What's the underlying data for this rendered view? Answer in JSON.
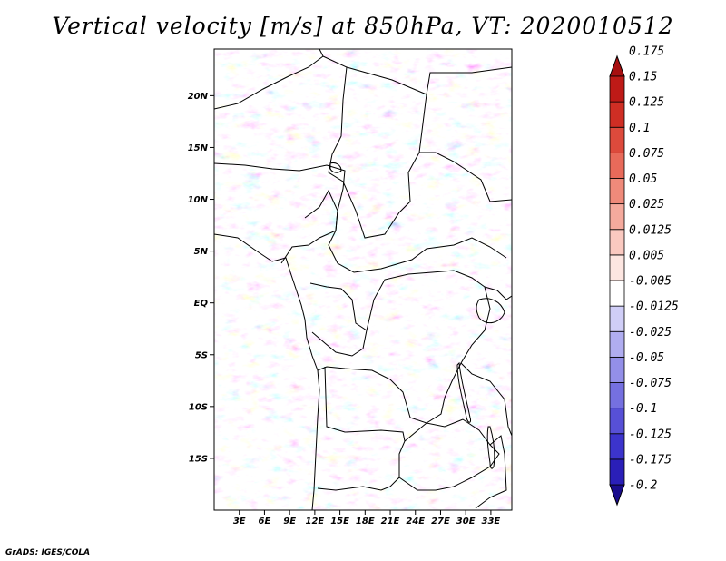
{
  "title": "Vertical velocity [m/s] at 850hPa, VT: 2020010512",
  "credit": "GrADS: IGES/COLA",
  "map": {
    "lon_range": [
      0,
      35.5
    ],
    "lat_range": [
      -20,
      24.5
    ],
    "lat_ticks": [
      {
        "value": 20,
        "label": "20N"
      },
      {
        "value": 15,
        "label": "15N"
      },
      {
        "value": 10,
        "label": "10N"
      },
      {
        "value": 5,
        "label": "5N"
      },
      {
        "value": 0,
        "label": "EQ"
      },
      {
        "value": -5,
        "label": "5S"
      },
      {
        "value": -10,
        "label": "10S"
      },
      {
        "value": -15,
        "label": "15S"
      }
    ],
    "lon_ticks": [
      {
        "value": 3,
        "label": "3E"
      },
      {
        "value": 6,
        "label": "6E"
      },
      {
        "value": 9,
        "label": "9E"
      },
      {
        "value": 12,
        "label": "12E"
      },
      {
        "value": 15,
        "label": "15E"
      },
      {
        "value": 18,
        "label": "18E"
      },
      {
        "value": 21,
        "label": "21E"
      },
      {
        "value": 24,
        "label": "24E"
      },
      {
        "value": 27,
        "label": "27E"
      },
      {
        "value": 30,
        "label": "30E"
      },
      {
        "value": 33,
        "label": "33E"
      }
    ]
  },
  "colorbar": {
    "colors": [
      "#1a0d8c",
      "#2a1fb8",
      "#3c34cc",
      "#5750d6",
      "#7570e0",
      "#938fe8",
      "#b0adf0",
      "#d0ceF7",
      "#ffffff",
      "#fde6e1",
      "#fac9c0",
      "#f5aa9d",
      "#ef8a7a",
      "#e86a5a",
      "#dd4a3c",
      "#cf2e24",
      "#be1a17",
      "#a70f10"
    ],
    "labels": [
      "-0.2",
      "-0.175",
      "-0.125",
      "-0.1",
      "-0.075",
      "-0.05",
      "-0.025",
      "-0.0125",
      "-0.005",
      "0.005",
      "0.0125",
      "0.025",
      "0.05",
      "0.075",
      "0.1",
      "0.125",
      "0.15",
      "0.175"
    ]
  }
}
